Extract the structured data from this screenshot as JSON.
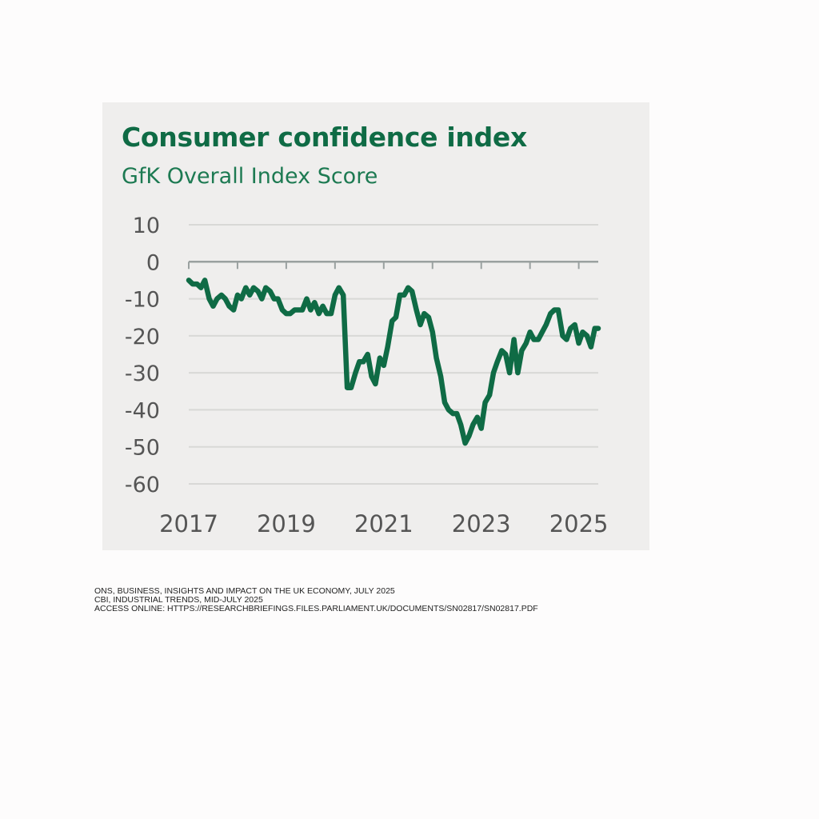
{
  "chart_data": {
    "type": "line",
    "title": "Consumer confidence index",
    "subtitle": "GfK Overall Index Score",
    "xlabel": "",
    "ylabel": "",
    "xlim": [
      2017,
      2025.4
    ],
    "ylim": [
      -60,
      10
    ],
    "yticks": [
      10,
      0,
      -10,
      -20,
      -30,
      -40,
      -50,
      -60
    ],
    "xticks": [
      "2017",
      "2019",
      "2021",
      "2023",
      "2025"
    ],
    "grid": true,
    "series": [
      {
        "color": "#0f6b45",
        "points": [
          [
            2017.0,
            -5
          ],
          [
            2017.08,
            -6
          ],
          [
            2017.17,
            -6
          ],
          [
            2017.25,
            -7
          ],
          [
            2017.33,
            -5
          ],
          [
            2017.42,
            -10
          ],
          [
            2017.5,
            -12
          ],
          [
            2017.58,
            -10
          ],
          [
            2017.67,
            -9
          ],
          [
            2017.75,
            -10
          ],
          [
            2017.83,
            -12
          ],
          [
            2017.92,
            -13
          ],
          [
            2018.0,
            -9
          ],
          [
            2018.08,
            -10
          ],
          [
            2018.17,
            -7
          ],
          [
            2018.25,
            -9
          ],
          [
            2018.33,
            -7
          ],
          [
            2018.42,
            -8
          ],
          [
            2018.5,
            -10
          ],
          [
            2018.58,
            -7
          ],
          [
            2018.67,
            -8
          ],
          [
            2018.75,
            -10
          ],
          [
            2018.83,
            -10
          ],
          [
            2018.92,
            -13
          ],
          [
            2019.0,
            -14
          ],
          [
            2019.08,
            -14
          ],
          [
            2019.17,
            -13
          ],
          [
            2019.25,
            -13
          ],
          [
            2019.33,
            -13
          ],
          [
            2019.42,
            -10
          ],
          [
            2019.5,
            -13
          ],
          [
            2019.58,
            -11
          ],
          [
            2019.67,
            -14
          ],
          [
            2019.75,
            -12
          ],
          [
            2019.83,
            -14
          ],
          [
            2019.92,
            -14
          ],
          [
            2020.0,
            -9
          ],
          [
            2020.08,
            -7
          ],
          [
            2020.17,
            -9
          ],
          [
            2020.25,
            -34
          ],
          [
            2020.33,
            -34
          ],
          [
            2020.42,
            -30
          ],
          [
            2020.5,
            -27
          ],
          [
            2020.58,
            -27
          ],
          [
            2020.67,
            -25
          ],
          [
            2020.75,
            -31
          ],
          [
            2020.83,
            -33
          ],
          [
            2020.92,
            -26
          ],
          [
            2021.0,
            -28
          ],
          [
            2021.08,
            -23
          ],
          [
            2021.17,
            -16
          ],
          [
            2021.25,
            -15
          ],
          [
            2021.33,
            -9
          ],
          [
            2021.42,
            -9
          ],
          [
            2021.5,
            -7
          ],
          [
            2021.58,
            -8
          ],
          [
            2021.67,
            -13
          ],
          [
            2021.75,
            -17
          ],
          [
            2021.83,
            -14
          ],
          [
            2021.92,
            -15
          ],
          [
            2022.0,
            -19
          ],
          [
            2022.08,
            -26
          ],
          [
            2022.17,
            -31
          ],
          [
            2022.25,
            -38
          ],
          [
            2022.33,
            -40
          ],
          [
            2022.42,
            -41
          ],
          [
            2022.5,
            -41
          ],
          [
            2022.58,
            -44
          ],
          [
            2022.67,
            -49
          ],
          [
            2022.75,
            -47
          ],
          [
            2022.83,
            -44
          ],
          [
            2022.92,
            -42
          ],
          [
            2023.0,
            -45
          ],
          [
            2023.08,
            -38
          ],
          [
            2023.17,
            -36
          ],
          [
            2023.25,
            -30
          ],
          [
            2023.33,
            -27
          ],
          [
            2023.42,
            -24
          ],
          [
            2023.5,
            -25
          ],
          [
            2023.58,
            -30
          ],
          [
            2023.67,
            -21
          ],
          [
            2023.75,
            -30
          ],
          [
            2023.83,
            -24
          ],
          [
            2023.92,
            -22
          ],
          [
            2024.0,
            -19
          ],
          [
            2024.08,
            -21
          ],
          [
            2024.17,
            -21
          ],
          [
            2024.25,
            -19
          ],
          [
            2024.33,
            -17
          ],
          [
            2024.42,
            -14
          ],
          [
            2024.5,
            -13
          ],
          [
            2024.58,
            -13
          ],
          [
            2024.67,
            -20
          ],
          [
            2024.75,
            -21
          ],
          [
            2024.83,
            -18
          ],
          [
            2024.92,
            -17
          ],
          [
            2025.0,
            -22
          ],
          [
            2025.08,
            -19
          ],
          [
            2025.17,
            -20
          ],
          [
            2025.25,
            -23
          ],
          [
            2025.33,
            -18
          ],
          [
            2025.4,
            -18
          ]
        ]
      }
    ]
  },
  "sources": [
    "ONS, BUSINESS, INSIGHTS AND IMPACT ON THE UK ECONOMY, JULY 2025",
    "CBI, INDUSTRIAL TRENDS, MID-JULY 2025",
    "ACCESS ONLINE: HTTPS://RESEARCHBRIEFINGS.FILES.PARLIAMENT.UK/DOCUMENTS/SN02817/SN02817.PDF"
  ]
}
